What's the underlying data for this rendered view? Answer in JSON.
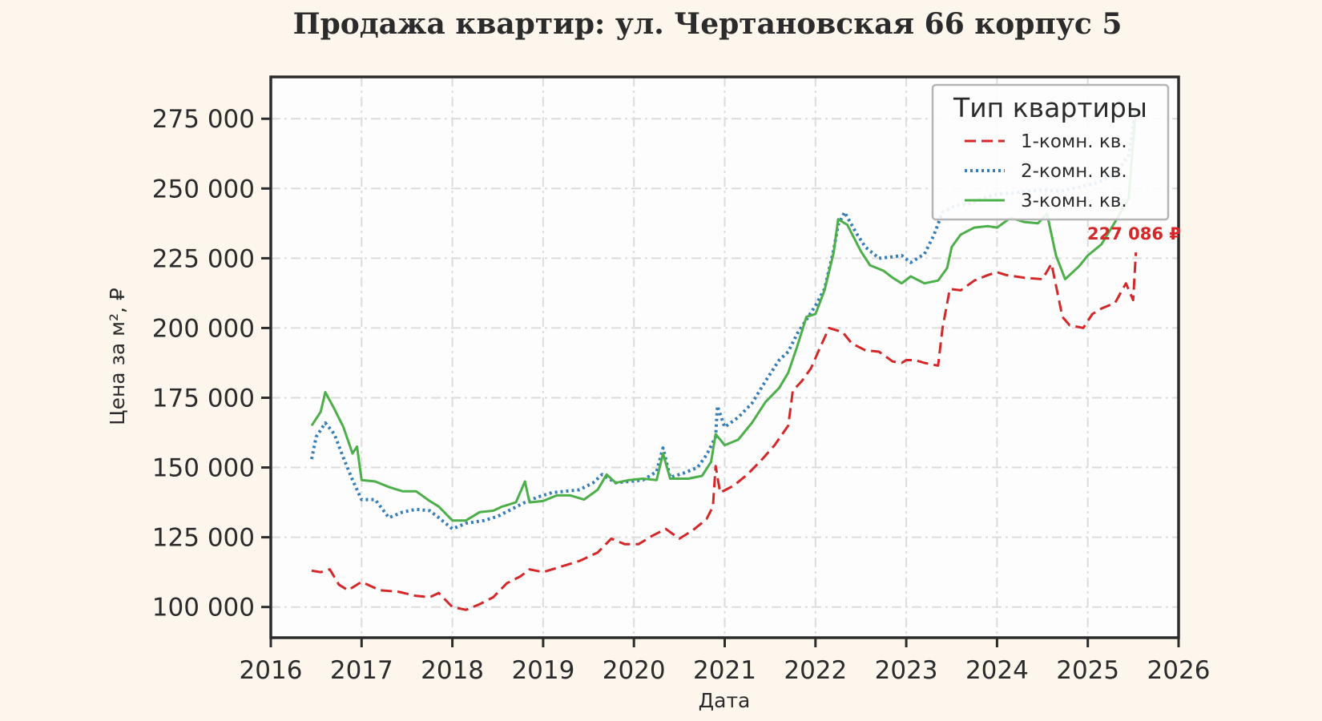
{
  "chart_data": {
    "type": "line",
    "title": "Продажа квартир: ул. Чертановская 66 корпус 5",
    "xlabel": "Дата",
    "ylabel": "Цена за м², ₽",
    "xlim": [
      2016,
      2026
    ],
    "ylim": [
      89000,
      290000
    ],
    "x_ticks": [
      2016,
      2017,
      2018,
      2019,
      2020,
      2021,
      2022,
      2023,
      2024,
      2025,
      2026
    ],
    "x_tick_labels": [
      "2016",
      "2017",
      "2018",
      "2019",
      "2020",
      "2021",
      "2022",
      "2023",
      "2024",
      "2025",
      "2026"
    ],
    "y_ticks": [
      100000,
      125000,
      150000,
      175000,
      200000,
      225000,
      250000,
      275000
    ],
    "y_tick_labels": [
      "100 000",
      "125 000",
      "150 000",
      "175 000",
      "200 000",
      "225 000",
      "250 000",
      "275 000"
    ],
    "grid": true,
    "legend": {
      "title": "Тип квартиры",
      "position": "top-right"
    },
    "end_label": "227 086 ₽",
    "series": [
      {
        "name": "1-комн. кв.",
        "color": "#d62728",
        "style": "dashed",
        "points": [
          [
            2016.45,
            113000
          ],
          [
            2016.55,
            112500
          ],
          [
            2016.65,
            113500
          ],
          [
            2016.75,
            108000
          ],
          [
            2016.85,
            106000
          ],
          [
            2017.0,
            109000
          ],
          [
            2017.2,
            106000
          ],
          [
            2017.4,
            105500
          ],
          [
            2017.6,
            104000
          ],
          [
            2017.75,
            103500
          ],
          [
            2017.85,
            105000
          ],
          [
            2018.0,
            100000
          ],
          [
            2018.15,
            99000
          ],
          [
            2018.3,
            101000
          ],
          [
            2018.45,
            103500
          ],
          [
            2018.6,
            108500
          ],
          [
            2018.75,
            111000
          ],
          [
            2018.85,
            113500
          ],
          [
            2019.0,
            112500
          ],
          [
            2019.2,
            114500
          ],
          [
            2019.4,
            116500
          ],
          [
            2019.6,
            119500
          ],
          [
            2019.75,
            124500
          ],
          [
            2019.9,
            122500
          ],
          [
            2020.05,
            122500
          ],
          [
            2020.2,
            125500
          ],
          [
            2020.35,
            128000
          ],
          [
            2020.5,
            124500
          ],
          [
            2020.65,
            127500
          ],
          [
            2020.8,
            131500
          ],
          [
            2020.87,
            136000
          ],
          [
            2020.9,
            150500
          ],
          [
            2020.95,
            141000
          ],
          [
            2021.1,
            143500
          ],
          [
            2021.25,
            147500
          ],
          [
            2021.4,
            152500
          ],
          [
            2021.55,
            158000
          ],
          [
            2021.7,
            165000
          ],
          [
            2021.75,
            177500
          ],
          [
            2021.85,
            181000
          ],
          [
            2021.95,
            185500
          ],
          [
            2022.05,
            193000
          ],
          [
            2022.15,
            200000
          ],
          [
            2022.3,
            198500
          ],
          [
            2022.4,
            194500
          ],
          [
            2022.55,
            192000
          ],
          [
            2022.7,
            191500
          ],
          [
            2022.85,
            188000
          ],
          [
            2022.95,
            187500
          ],
          [
            2023.0,
            188500
          ],
          [
            2023.1,
            188500
          ],
          [
            2023.2,
            187500
          ],
          [
            2023.35,
            186500
          ],
          [
            2023.4,
            200000
          ],
          [
            2023.48,
            214000
          ],
          [
            2023.6,
            213500
          ],
          [
            2023.75,
            217000
          ],
          [
            2023.9,
            219000
          ],
          [
            2024.0,
            220000
          ],
          [
            2024.1,
            219000
          ],
          [
            2024.3,
            218000
          ],
          [
            2024.5,
            217500
          ],
          [
            2024.6,
            223000
          ],
          [
            2024.72,
            204000
          ],
          [
            2024.8,
            201000
          ],
          [
            2024.95,
            200000
          ],
          [
            2025.05,
            205000
          ],
          [
            2025.15,
            207000
          ],
          [
            2025.3,
            209000
          ],
          [
            2025.42,
            216000
          ],
          [
            2025.5,
            210000
          ],
          [
            2025.53,
            227086
          ]
        ]
      },
      {
        "name": "2-комн. кв.",
        "color": "#377eb8",
        "style": "dotted",
        "points": [
          [
            2016.45,
            153000
          ],
          [
            2016.5,
            161000
          ],
          [
            2016.6,
            166000
          ],
          [
            2016.7,
            162000
          ],
          [
            2016.8,
            153500
          ],
          [
            2016.9,
            145500
          ],
          [
            2017.0,
            138500
          ],
          [
            2017.15,
            138500
          ],
          [
            2017.3,
            132000
          ],
          [
            2017.45,
            134000
          ],
          [
            2017.6,
            135000
          ],
          [
            2017.75,
            134500
          ],
          [
            2017.85,
            132000
          ],
          [
            2018.0,
            128000
          ],
          [
            2018.15,
            130000
          ],
          [
            2018.35,
            131000
          ],
          [
            2018.5,
            132500
          ],
          [
            2018.65,
            135000
          ],
          [
            2018.8,
            137500
          ],
          [
            2018.95,
            139500
          ],
          [
            2019.1,
            141000
          ],
          [
            2019.25,
            141500
          ],
          [
            2019.4,
            142000
          ],
          [
            2019.55,
            144500
          ],
          [
            2019.65,
            147500
          ],
          [
            2019.8,
            144500
          ],
          [
            2019.95,
            145000
          ],
          [
            2020.1,
            145500
          ],
          [
            2020.25,
            148500
          ],
          [
            2020.32,
            157000
          ],
          [
            2020.4,
            146500
          ],
          [
            2020.55,
            148000
          ],
          [
            2020.7,
            150000
          ],
          [
            2020.8,
            154500
          ],
          [
            2020.9,
            161000
          ],
          [
            2020.92,
            172000
          ],
          [
            2021.0,
            164500
          ],
          [
            2021.15,
            168000
          ],
          [
            2021.3,
            173000
          ],
          [
            2021.45,
            181000
          ],
          [
            2021.6,
            188500
          ],
          [
            2021.7,
            191500
          ],
          [
            2021.8,
            198000
          ],
          [
            2021.9,
            203000
          ],
          [
            2022.0,
            208000
          ],
          [
            2022.1,
            214000
          ],
          [
            2022.2,
            228000
          ],
          [
            2022.25,
            237000
          ],
          [
            2022.32,
            241500
          ],
          [
            2022.45,
            234000
          ],
          [
            2022.55,
            229000
          ],
          [
            2022.7,
            225000
          ],
          [
            2022.85,
            225500
          ],
          [
            2022.95,
            226000
          ],
          [
            2023.05,
            223500
          ],
          [
            2023.2,
            226500
          ],
          [
            2023.3,
            233000
          ],
          [
            2023.4,
            241500
          ],
          [
            2023.55,
            244000
          ],
          [
            2023.7,
            244500
          ],
          [
            2023.85,
            246500
          ],
          [
            2024.0,
            248000
          ],
          [
            2024.2,
            248500
          ],
          [
            2024.5,
            249500
          ],
          [
            2024.7,
            249000
          ],
          [
            2024.9,
            250500
          ],
          [
            2025.1,
            252000
          ],
          [
            2025.3,
            255000
          ],
          [
            2025.45,
            262000
          ],
          [
            2025.53,
            279000
          ]
        ]
      },
      {
        "name": "3-комн. кв.",
        "color": "#4daf4a",
        "style": "solid",
        "points": [
          [
            2016.45,
            165000
          ],
          [
            2016.55,
            170000
          ],
          [
            2016.6,
            177000
          ],
          [
            2016.7,
            171000
          ],
          [
            2016.8,
            164500
          ],
          [
            2016.9,
            155000
          ],
          [
            2016.95,
            157500
          ],
          [
            2017.0,
            145500
          ],
          [
            2017.15,
            145000
          ],
          [
            2017.3,
            143000
          ],
          [
            2017.45,
            141500
          ],
          [
            2017.6,
            141500
          ],
          [
            2017.75,
            138000
          ],
          [
            2017.85,
            136000
          ],
          [
            2018.0,
            131000
          ],
          [
            2018.15,
            131000
          ],
          [
            2018.3,
            134000
          ],
          [
            2018.45,
            134500
          ],
          [
            2018.55,
            136000
          ],
          [
            2018.7,
            137500
          ],
          [
            2018.8,
            145000
          ],
          [
            2018.85,
            137500
          ],
          [
            2019.0,
            138000
          ],
          [
            2019.15,
            140000
          ],
          [
            2019.3,
            140000
          ],
          [
            2019.45,
            138500
          ],
          [
            2019.6,
            142000
          ],
          [
            2019.7,
            147500
          ],
          [
            2019.8,
            144500
          ],
          [
            2019.95,
            145500
          ],
          [
            2020.1,
            146000
          ],
          [
            2020.25,
            145500
          ],
          [
            2020.32,
            155000
          ],
          [
            2020.4,
            146000
          ],
          [
            2020.6,
            146000
          ],
          [
            2020.75,
            147000
          ],
          [
            2020.85,
            152000
          ],
          [
            2020.9,
            162000
          ],
          [
            2021.0,
            158000
          ],
          [
            2021.15,
            160000
          ],
          [
            2021.3,
            166000
          ],
          [
            2021.45,
            173500
          ],
          [
            2021.6,
            178500
          ],
          [
            2021.7,
            184000
          ],
          [
            2021.8,
            193500
          ],
          [
            2021.9,
            204000
          ],
          [
            2022.0,
            205000
          ],
          [
            2022.1,
            213500
          ],
          [
            2022.2,
            227000
          ],
          [
            2022.25,
            239000
          ],
          [
            2022.35,
            237000
          ],
          [
            2022.5,
            227500
          ],
          [
            2022.6,
            222500
          ],
          [
            2022.75,
            220500
          ],
          [
            2022.85,
            218000
          ],
          [
            2022.95,
            216000
          ],
          [
            2023.05,
            218500
          ],
          [
            2023.2,
            216000
          ],
          [
            2023.35,
            217000
          ],
          [
            2023.45,
            221500
          ],
          [
            2023.5,
            229000
          ],
          [
            2023.6,
            233500
          ],
          [
            2023.75,
            236000
          ],
          [
            2023.9,
            236500
          ],
          [
            2024.0,
            236000
          ],
          [
            2024.15,
            239500
          ],
          [
            2024.3,
            238000
          ],
          [
            2024.45,
            237500
          ],
          [
            2024.55,
            241000
          ],
          [
            2024.65,
            226000
          ],
          [
            2024.75,
            217500
          ],
          [
            2024.9,
            222000
          ],
          [
            2025.0,
            226000
          ],
          [
            2025.15,
            230000
          ],
          [
            2025.3,
            238000
          ],
          [
            2025.45,
            246500
          ],
          [
            2025.53,
            279000
          ]
        ]
      }
    ]
  }
}
